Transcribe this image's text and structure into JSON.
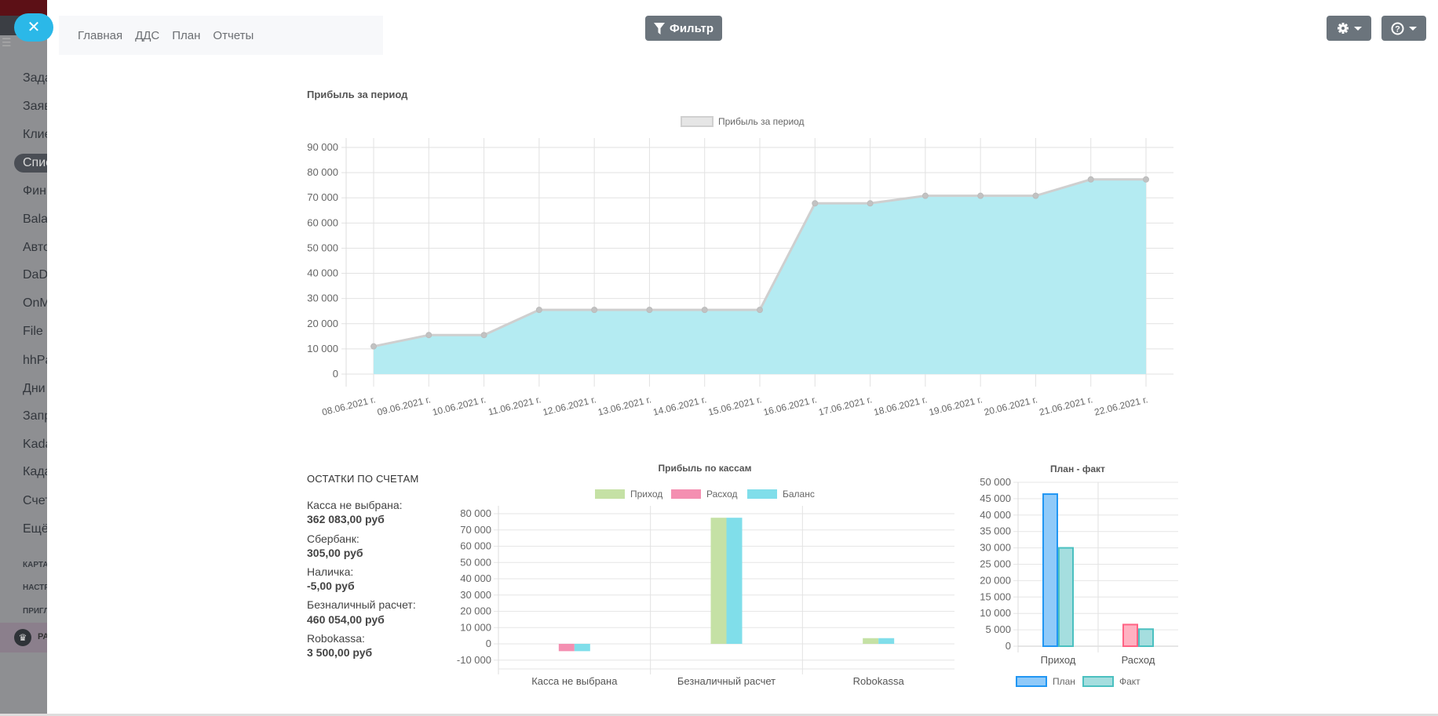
{
  "sidebar": {
    "close_icon": "close-x-icon",
    "items": [
      "Зада",
      "Заяв",
      "Клие",
      "Спис",
      "Фин",
      "Bala",
      "Авто",
      "DaD",
      "OnM",
      "File F",
      "hhPa",
      "Дни",
      "Запр",
      "Kada",
      "Када",
      "Счет",
      "Ещё"
    ],
    "active_index": 3,
    "captions": [
      "КАРТА",
      "НАСТР",
      "ПРИГЛ"
    ],
    "bottom_label": "РА"
  },
  "topnav": {
    "items": [
      "Главная",
      "ДДС",
      "План",
      "Отчеты"
    ]
  },
  "toolbar": {
    "filter_label": "Фильтр",
    "filter_icon": "funnel-icon",
    "settings_icon": "gear-icon",
    "help_icon": "question-circle-icon"
  },
  "main_chart": {
    "title": "Прибыль за период"
  },
  "balances": {
    "title": "ОСТАТКИ ПО СЧЕТАМ",
    "accounts": [
      {
        "label": "Касса не выбрана:",
        "value": "362 083,00  руб"
      },
      {
        "label": "Сбербанк:",
        "value": "305,00  руб"
      },
      {
        "label": "Наличка:",
        "value": "-5,00  руб"
      },
      {
        "label": "Безналичный расчет:",
        "value": "460 054,00  руб"
      },
      {
        "label": "Robokassa:",
        "value": "3 500,00  руб"
      }
    ]
  },
  "chart_data": [
    {
      "type": "area",
      "title": "",
      "legend": [
        "Прибыль за период"
      ],
      "legend_position": "top",
      "categories": [
        "08.06.2021 г.",
        "09.06.2021 г.",
        "10.06.2021 г.",
        "11.06.2021 г.",
        "12.06.2021 г.",
        "13.06.2021 г.",
        "14.06.2021 г.",
        "15.06.2021 г.",
        "16.06.2021 г.",
        "17.06.2021 г.",
        "18.06.2021 г.",
        "19.06.2021 г.",
        "20.06.2021 г.",
        "21.06.2021 г.",
        "22.06.2021 г."
      ],
      "series": [
        {
          "name": "Прибыль за период",
          "values": [
            11000,
            15500,
            15500,
            25500,
            25500,
            25500,
            25500,
            25500,
            67800,
            67800,
            70800,
            70800,
            70800,
            77300,
            77300
          ],
          "color": "#b2ebf2"
        }
      ],
      "yticks": [
        "0",
        "10 000",
        "20 000",
        "30 000",
        "40 000",
        "50 000",
        "60 000",
        "70 000",
        "80 000",
        "90 000"
      ],
      "ylim": [
        0,
        90000
      ],
      "grid": true
    },
    {
      "type": "bar",
      "title": "Прибыль по кассам",
      "legend_position": "top",
      "categories": [
        "Касса не выбрана",
        "Безналичный расчет",
        "Robokassa"
      ],
      "series": [
        {
          "name": "Приход",
          "values": [
            0,
            77500,
            3500
          ],
          "color": "#c5e1a5"
        },
        {
          "name": "Расход",
          "values": [
            -4500,
            0,
            0
          ],
          "color": "#f48fb1"
        },
        {
          "name": "Баланс",
          "values": [
            -4500,
            77500,
            3500
          ],
          "color": "#80deea"
        }
      ],
      "yticks": [
        "-10 000",
        "0",
        "10 000",
        "20 000",
        "30 000",
        "40 000",
        "50 000",
        "60 000",
        "70 000",
        "80 000"
      ],
      "ylim": [
        -10000,
        80000
      ],
      "grid": true
    },
    {
      "type": "bar",
      "title": "План - факт",
      "legend_position": "bottom",
      "categories": [
        "Приход",
        "Расход"
      ],
      "series": [
        {
          "name": "План",
          "values": [
            46400,
            6600
          ],
          "color": "#90caf9",
          "border": "#2196f3"
        },
        {
          "name": "Факт",
          "values": [
            30000,
            5200
          ],
          "color": "#a5dedf",
          "border": "#4bc0c0"
        }
      ],
      "expense_plan_color": "#ffb1c1",
      "expense_plan_border": "#ff6384",
      "yticks": [
        "0",
        "5 000",
        "10 000",
        "15 000",
        "20 000",
        "25 000",
        "30 000",
        "35 000",
        "40 000",
        "45 000",
        "50 000"
      ],
      "ylim": [
        0,
        50000
      ],
      "grid": true
    }
  ]
}
